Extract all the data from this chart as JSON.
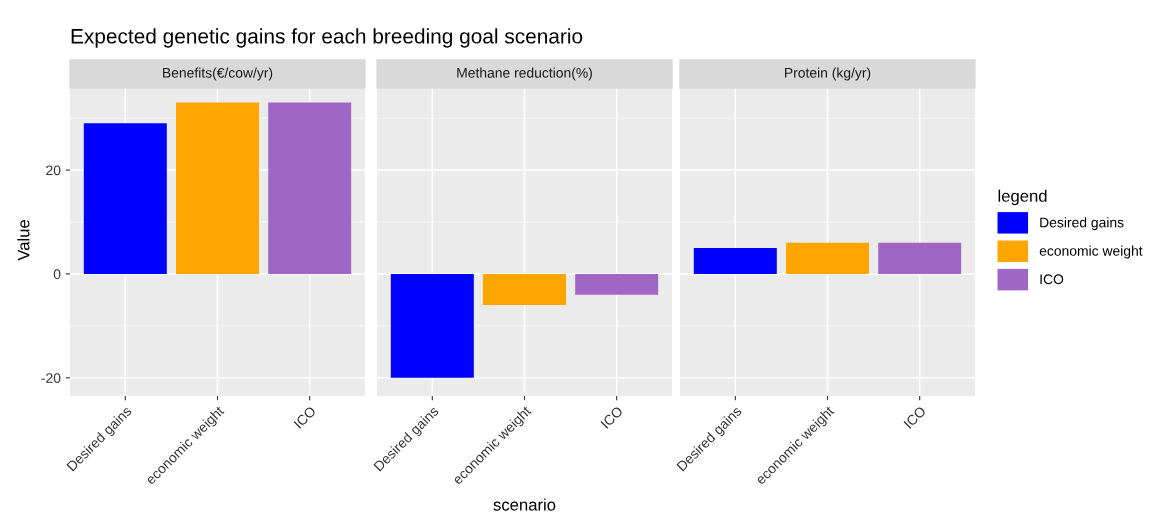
{
  "chart_data": [
    {
      "type": "bar",
      "title": "Expected genetic gains for each breeding goal scenario",
      "subtitle": "Benefits(€/cow/yr)",
      "ylabel": "Value",
      "categories": [
        "Desired gains",
        "economic weight",
        "ICO"
      ],
      "series": [
        {
          "color": "#0000ff",
          "values": [
            29,
            null,
            null
          ]
        },
        {
          "color": "#ffa500",
          "values": [
            null,
            33,
            null
          ]
        },
        {
          "color": "#9f66c6",
          "values": [
            null,
            null,
            33
          ]
        }
      ],
      "ylim": [
        -23.5,
        35.8
      ],
      "yticks": [
        -20,
        0,
        20
      ],
      "grid": true
    },
    {
      "type": "bar",
      "subtitle": "Methane reduction(%)",
      "xlabel": "scenario",
      "categories": [
        "Desired gains",
        "economic weight",
        "ICO"
      ],
      "series": [
        {
          "color": "#0000ff",
          "values": [
            -20,
            null,
            null
          ]
        },
        {
          "color": "#ffa500",
          "values": [
            null,
            -6,
            null
          ]
        },
        {
          "color": "#9f66c6",
          "values": [
            null,
            null,
            -4
          ]
        }
      ],
      "ylim": [
        -23.5,
        35.8
      ],
      "yticks": [
        -20,
        0,
        20
      ],
      "grid": true,
      "tick_labels": "x"
    },
    {
      "type": "bar",
      "subtitle": "Protein (kg/yr)",
      "categories": [
        "Desired gains",
        "economic weight",
        "ICO"
      ],
      "series": [
        {
          "name": "Desired gains",
          "color": "#0000ff",
          "values": [
            5,
            null,
            null
          ]
        },
        {
          "name": "economic weight",
          "color": "#ffa500",
          "values": [
            null,
            6,
            null
          ]
        },
        {
          "name": "ICO",
          "color": "#9f66c6",
          "values": [
            null,
            null,
            6
          ]
        }
      ],
      "ylim": [
        -23.5,
        35.8
      ],
      "yticks": [
        -20,
        0,
        20
      ],
      "grid": true,
      "tick_labels": "x",
      "legend": "right",
      "legend_title": "legend"
    }
  ]
}
